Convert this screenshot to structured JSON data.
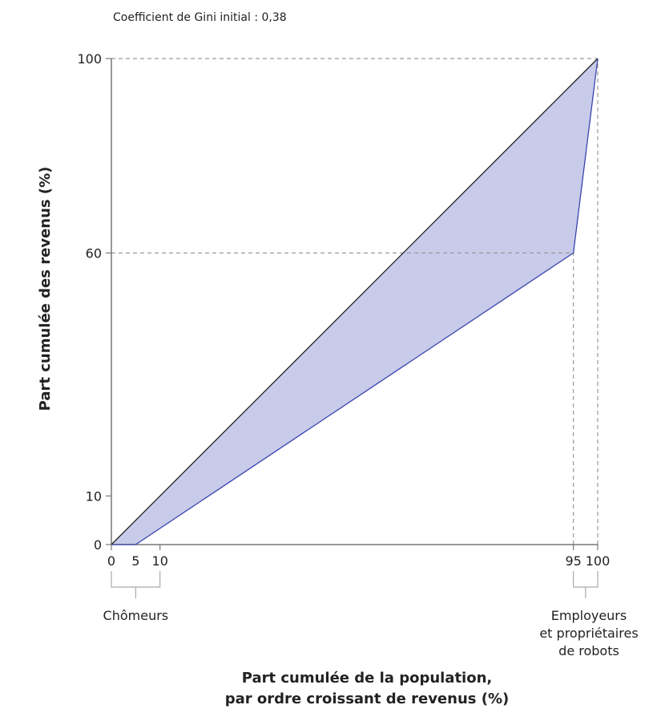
{
  "chart_data": {
    "type": "area",
    "annotation": "Coefficient de Gini initial : 0,38",
    "xlabel_line1": "Part cumulée de la population,",
    "xlabel_line2": "par ordre croissant de revenus (%)",
    "ylabel": "Part cumulée des revenus (%)",
    "xlim": [
      0,
      100
    ],
    "ylim": [
      0,
      100
    ],
    "x_ticks": [
      0,
      5,
      10,
      95,
      100
    ],
    "y_ticks": [
      0,
      10,
      60,
      100
    ],
    "grid": false,
    "series": [
      {
        "role": "equality-line",
        "x": [
          0,
          100
        ],
        "y": [
          0,
          100
        ],
        "color": "#222222"
      },
      {
        "role": "lorenz-curve",
        "x": [
          0,
          5,
          95,
          100
        ],
        "y": [
          0,
          0,
          60,
          100
        ],
        "color": "#3b46b0",
        "fill": "#c8cbe9"
      }
    ],
    "guides": [
      {
        "type": "horizontal",
        "y": 100,
        "x_to": 100
      },
      {
        "type": "horizontal",
        "y": 60,
        "x_to": 95
      },
      {
        "type": "vertical",
        "x": 95,
        "y_to": 60
      },
      {
        "type": "vertical",
        "x": 100,
        "y_to": 100
      }
    ],
    "brackets": [
      {
        "from": 0,
        "to": 10,
        "label": [
          "Chômeurs"
        ]
      },
      {
        "from": 95,
        "to": 100,
        "label": [
          "Employeurs",
          "et propriétaires",
          "de robots"
        ]
      }
    ]
  }
}
